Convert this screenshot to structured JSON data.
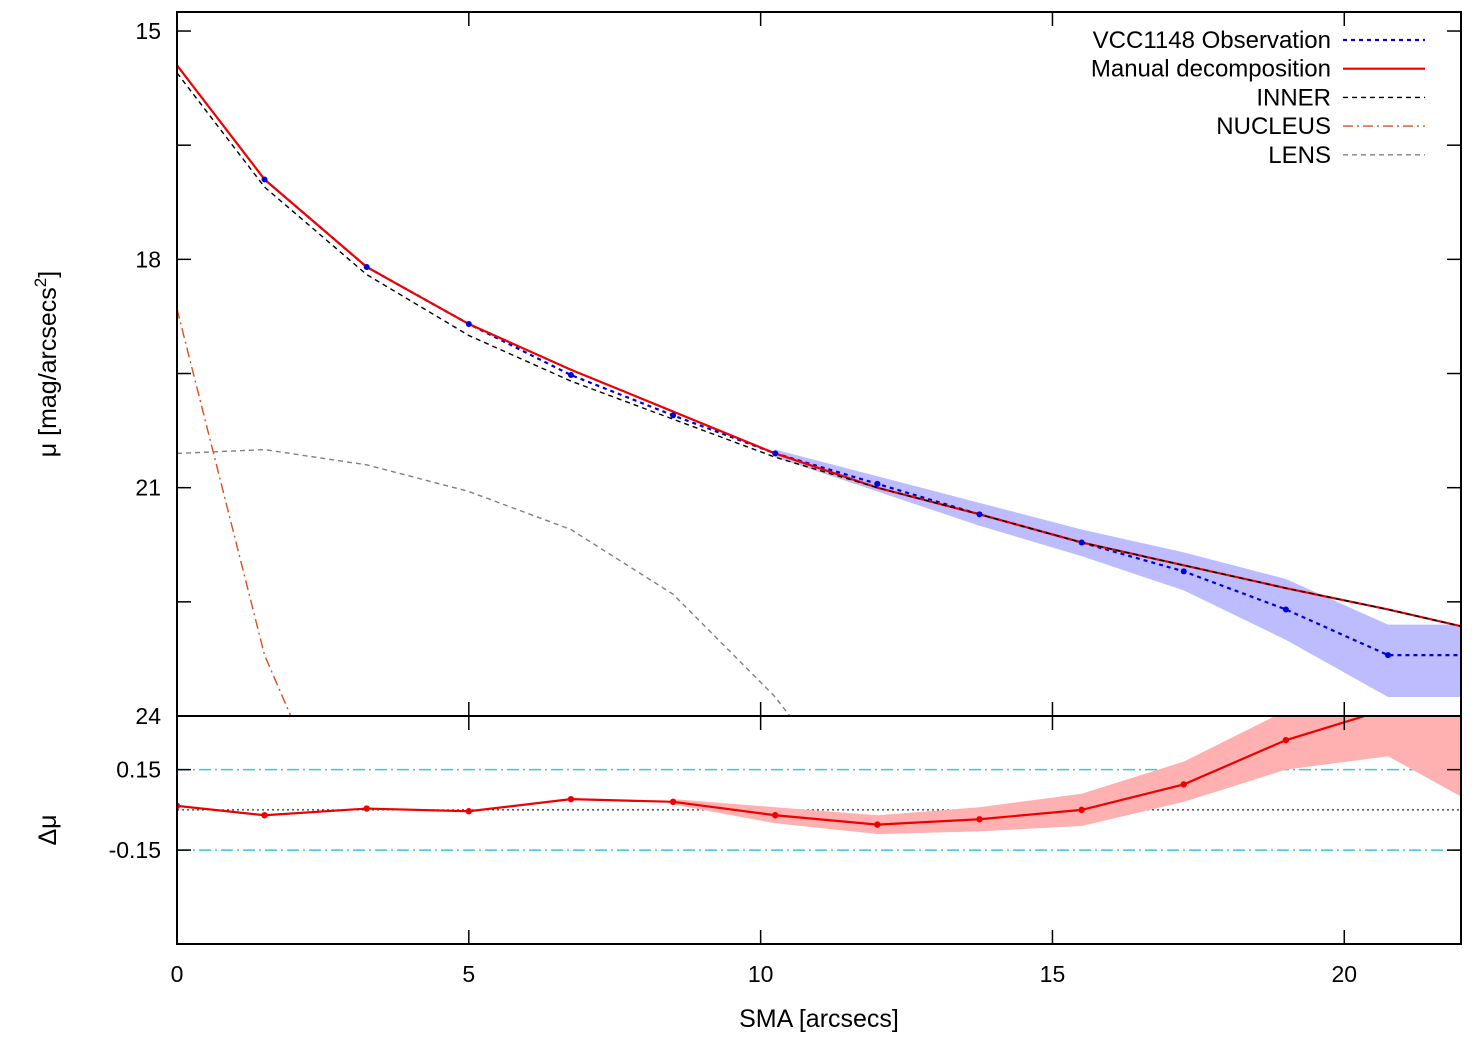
{
  "chart_data": [
    {
      "type": "line",
      "panel": "surface-brightness-profile",
      "xlabel": "",
      "ylabel": "μ [mag/arcsecs²]",
      "xlim": [
        0,
        22
      ],
      "ylim": [
        24,
        14.75
      ],
      "y_inverted": true,
      "yticks": [
        15,
        18,
        21,
        24
      ],
      "ytick_labels": [
        "15",
        "18",
        "21",
        "24"
      ],
      "legend_position": "top-right",
      "series": [
        {
          "name": "VCC1148 Observation",
          "style": "dotted-with-points",
          "color": "#0000dd",
          "x": [
            1.5,
            3.25,
            5.0,
            6.75,
            8.5,
            10.25,
            12.0,
            13.75,
            15.5,
            17.25,
            19.0,
            20.75,
            22.0
          ],
          "y": [
            16.95,
            18.1,
            18.85,
            19.52,
            20.05,
            20.55,
            20.95,
            21.35,
            21.72,
            22.1,
            22.6,
            23.2,
            23.2
          ]
        },
        {
          "name": "VCC1148 Observation uncertainty",
          "style": "band",
          "color": "#b8b8ff",
          "x": [
            10.25,
            12.0,
            13.75,
            15.5,
            17.25,
            19.0,
            20.75,
            22.0
          ],
          "y_low": [
            20.5,
            20.85,
            21.2,
            21.55,
            21.85,
            22.2,
            22.8,
            22.8
          ],
          "y_high": [
            20.6,
            21.05,
            21.5,
            21.9,
            22.35,
            23.0,
            23.75,
            23.75
          ]
        },
        {
          "name": "Manual decomposition",
          "style": "solid",
          "color": "#ee0000",
          "x": [
            0,
            1.5,
            3.25,
            5.0,
            6.75,
            8.5,
            10.25,
            12.0,
            13.75,
            15.5,
            17.25,
            19.0,
            20.75,
            22.0
          ],
          "y": [
            15.45,
            16.95,
            18.1,
            18.85,
            19.45,
            20.0,
            20.55,
            21.0,
            21.35,
            21.72,
            22.02,
            22.32,
            22.6,
            22.82
          ]
        },
        {
          "name": "INNER",
          "style": "dashed",
          "color": "#000000",
          "x": [
            0,
            1.5,
            3.25,
            5.0,
            6.75,
            8.5,
            10.25,
            12.0,
            13.75,
            15.5,
            17.25,
            19.0,
            20.75,
            22.0
          ],
          "y": [
            15.55,
            17.05,
            18.2,
            19.0,
            19.6,
            20.1,
            20.6,
            21.0,
            21.35,
            21.72,
            22.02,
            22.32,
            22.6,
            22.82
          ]
        },
        {
          "name": "NUCLEUS",
          "style": "dash-dot",
          "color": "#d8501c",
          "x": [
            0,
            1.5,
            1.95
          ],
          "y": [
            18.65,
            23.2,
            24.0
          ]
        },
        {
          "name": "LENS",
          "style": "dashed",
          "color": "#808080",
          "x": [
            0,
            1.5,
            3.25,
            5.0,
            6.75,
            8.5,
            10.25,
            10.5
          ],
          "y": [
            20.55,
            20.5,
            20.7,
            21.05,
            21.55,
            22.4,
            23.75,
            24.0
          ]
        }
      ]
    },
    {
      "type": "line",
      "panel": "residuals",
      "xlabel": "SMA [arcsecs]",
      "ylabel": "Δμ",
      "xlim": [
        0,
        22
      ],
      "ylim": [
        -0.5,
        0.35
      ],
      "yticks": [
        0.15,
        -0.15
      ],
      "ytick_labels": [
        "0.15",
        "-0.15"
      ],
      "xticks": [
        0,
        5,
        10,
        15,
        20
      ],
      "xtick_labels": [
        "0",
        "5",
        "10",
        "15",
        "20"
      ],
      "reference_lines": [
        {
          "y": 0.0,
          "style": "dotted",
          "color": "#000000"
        },
        {
          "y": 0.15,
          "style": "dash-dot",
          "color": "#33cccc"
        },
        {
          "y": -0.15,
          "style": "dash-dot",
          "color": "#33cccc"
        }
      ],
      "series": [
        {
          "name": "",
          "style": "solid-with-points",
          "color": "#ee0000",
          "x": [
            0,
            1.5,
            3.25,
            5.0,
            6.75,
            8.5,
            10.25,
            12.0,
            13.75,
            15.5,
            17.25,
            19.0,
            20.35
          ],
          "y": [
            0.015,
            -0.02,
            0.005,
            -0.005,
            0.04,
            0.03,
            -0.02,
            -0.055,
            -0.035,
            0.0,
            0.095,
            0.26,
            0.35
          ]
        },
        {
          "name": "",
          "style": "band",
          "color": "#ffb0b0",
          "x": [
            8.5,
            10.25,
            12.0,
            13.75,
            15.5,
            17.25,
            19.0,
            20.75,
            22.0
          ],
          "y_low": [
            0.02,
            -0.05,
            -0.09,
            -0.08,
            -0.06,
            0.03,
            0.15,
            0.2,
            0.05
          ],
          "y_high": [
            0.04,
            0.01,
            -0.02,
            0.01,
            0.06,
            0.18,
            0.37,
            0.6,
            0.6
          ]
        }
      ]
    }
  ]
}
